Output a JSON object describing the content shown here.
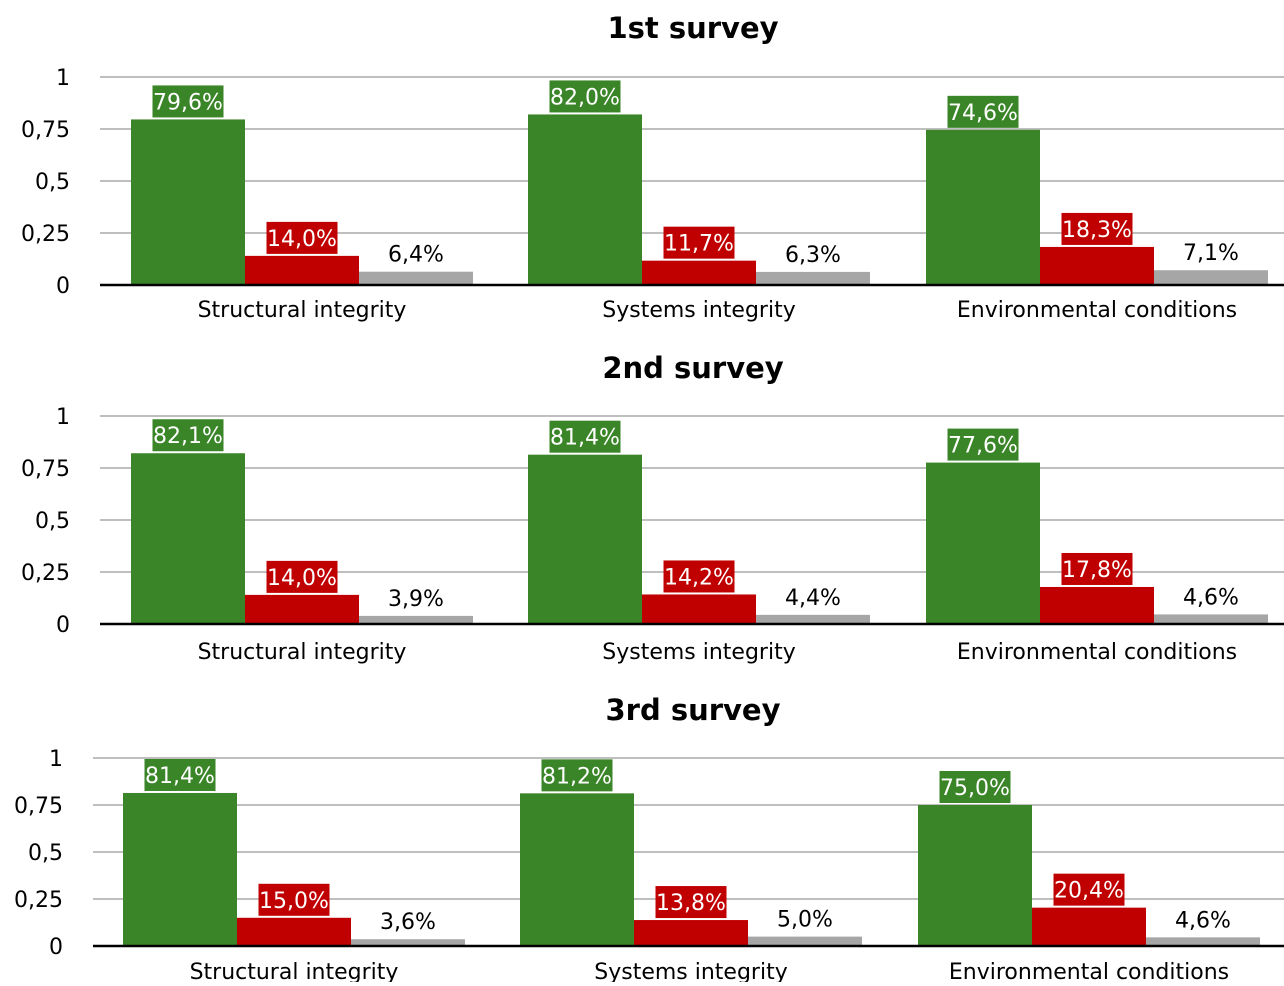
{
  "colors": {
    "green": "#3a8527",
    "red": "#c00000",
    "gray": "#a6a6a6",
    "label_on_dark": "#ffffff",
    "label_on_light": "#000000"
  },
  "chart_data": [
    {
      "type": "bar",
      "title": "1st survey",
      "categories": [
        "Structural integrity",
        "Systems integrity",
        "Environmental conditions"
      ],
      "ylim": [
        0,
        1
      ],
      "yticks": [
        "0",
        "0,25",
        "0,5",
        "0,75",
        "1"
      ],
      "ytick_values": [
        0,
        0.25,
        0.5,
        0.75,
        1
      ],
      "grid": true,
      "legend": "none",
      "series": [
        {
          "values": [
            0.796,
            0.82,
            0.746
          ],
          "labels": [
            "79,6%",
            "82,0%",
            "74,6%"
          ],
          "color": "green"
        },
        {
          "values": [
            0.14,
            0.117,
            0.183
          ],
          "labels": [
            "14,0%",
            "11,7%",
            "18,3%"
          ],
          "color": "red"
        },
        {
          "values": [
            0.064,
            0.063,
            0.071
          ],
          "labels": [
            "6,4%",
            "6,3%",
            "7,1%"
          ],
          "color": "gray"
        }
      ]
    },
    {
      "type": "bar",
      "title": "2nd survey",
      "categories": [
        "Structural integrity",
        "Systems integrity",
        "Environmental conditions"
      ],
      "ylim": [
        0,
        1
      ],
      "yticks": [
        "0",
        "0,25",
        "0,5",
        "0,75",
        "1"
      ],
      "ytick_values": [
        0,
        0.25,
        0.5,
        0.75,
        1
      ],
      "grid": true,
      "legend": "none",
      "series": [
        {
          "values": [
            0.821,
            0.814,
            0.776
          ],
          "labels": [
            "82,1%",
            "81,4%",
            "77,6%"
          ],
          "color": "green"
        },
        {
          "values": [
            0.14,
            0.142,
            0.178
          ],
          "labels": [
            "14,0%",
            "14,2%",
            "17,8%"
          ],
          "color": "red"
        },
        {
          "values": [
            0.039,
            0.044,
            0.046
          ],
          "labels": [
            "3,9%",
            "4,4%",
            "4,6%"
          ],
          "color": "gray"
        }
      ]
    },
    {
      "type": "bar",
      "title": "3rd survey",
      "categories": [
        "Structural integrity",
        "Systems integrity",
        "Environmental conditions"
      ],
      "ylim": [
        0,
        1
      ],
      "yticks": [
        "0",
        "0,25",
        "0,5",
        "0,75",
        "1"
      ],
      "ytick_values": [
        0,
        0.25,
        0.5,
        0.75,
        1
      ],
      "grid": true,
      "legend": "none",
      "series": [
        {
          "values": [
            0.814,
            0.812,
            0.75
          ],
          "labels": [
            "81,4%",
            "81,2%",
            "75,0%"
          ],
          "color": "green"
        },
        {
          "values": [
            0.15,
            0.138,
            0.204
          ],
          "labels": [
            "15,0%",
            "13,8%",
            "20,4%"
          ],
          "color": "red"
        },
        {
          "values": [
            0.036,
            0.05,
            0.046
          ],
          "labels": [
            "3,6%",
            "5,0%",
            "4,6%"
          ],
          "color": "gray"
        }
      ]
    }
  ]
}
